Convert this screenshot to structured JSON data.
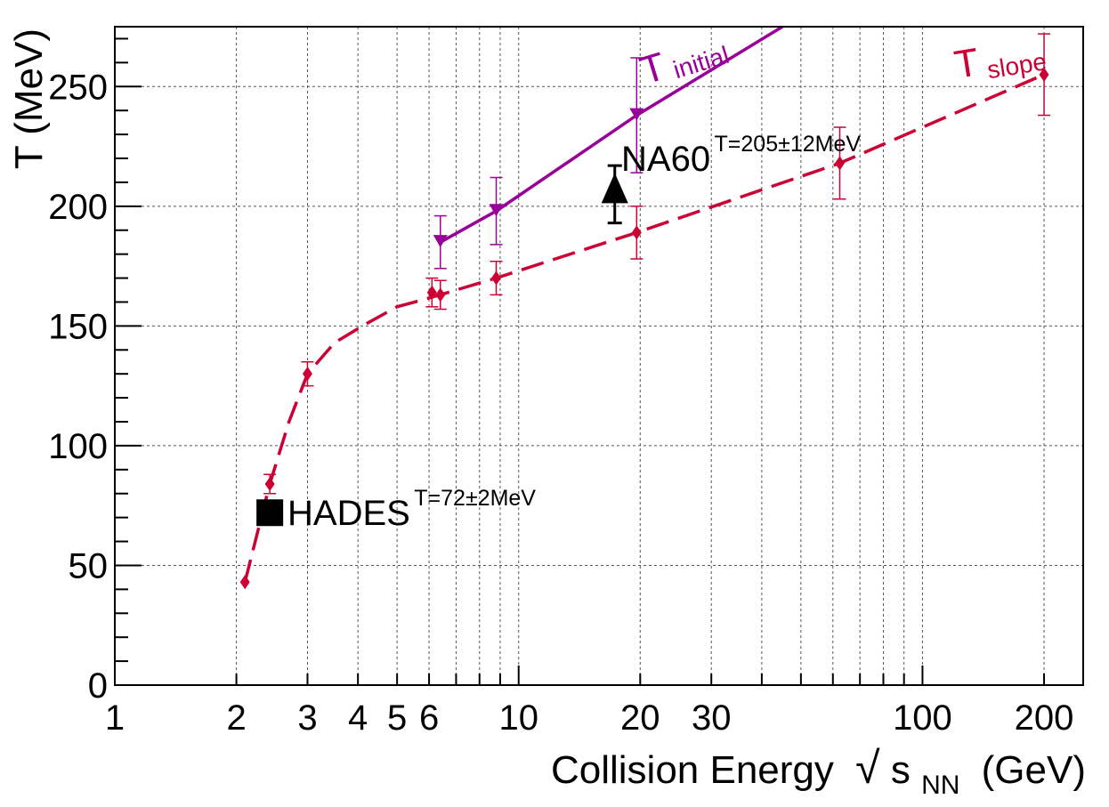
{
  "chart_data": {
    "type": "scatter",
    "title": "",
    "xlabel_main": "Collision Energy",
    "xlabel_root_symbol": "√",
    "xlabel_sqrt_var": "s",
    "xlabel_sqrt_sub": "NN",
    "xlabel_unit": "(GeV)",
    "ylabel": "T (MeV)",
    "xscale": "log",
    "xlim": [
      1,
      250
    ],
    "ylim": [
      0,
      275
    ],
    "grid": true,
    "x_ticks": [
      {
        "value": 1,
        "label": "1"
      },
      {
        "value": 2,
        "label": "2"
      },
      {
        "value": 3,
        "label": "3"
      },
      {
        "value": 4,
        "label": "4"
      },
      {
        "value": 5,
        "label": "5"
      },
      {
        "value": 6,
        "label": "6"
      },
      {
        "value": 10,
        "label": "10"
      },
      {
        "value": 20,
        "label": "20"
      },
      {
        "value": 30,
        "label": "30"
      },
      {
        "value": 100,
        "label": "100"
      },
      {
        "value": 200,
        "label": "200"
      }
    ],
    "y_ticks": [
      {
        "value": 0,
        "label": "0"
      },
      {
        "value": 50,
        "label": "50"
      },
      {
        "value": 100,
        "label": "100"
      },
      {
        "value": 150,
        "label": "150"
      },
      {
        "value": 200,
        "label": "200"
      },
      {
        "value": 250,
        "label": "250"
      }
    ],
    "series": [
      {
        "name": "T_slope",
        "label_main": "T",
        "label_sub": "slope",
        "color": "#cc0033",
        "marker": "diamond",
        "line_style": "dashed",
        "points": [
          {
            "x": 2.1,
            "y": 43,
            "err": 0
          },
          {
            "x": 2.42,
            "y": 84,
            "err": 4
          },
          {
            "x": 3.0,
            "y": 130,
            "err": 5
          },
          {
            "x": 6.1,
            "y": 164,
            "err": 6
          },
          {
            "x": 6.4,
            "y": 163,
            "err": 6
          },
          {
            "x": 8.8,
            "y": 170,
            "err": 7
          },
          {
            "x": 19.6,
            "y": 189,
            "err": 11
          },
          {
            "x": 62.4,
            "y": 218,
            "err": 15
          },
          {
            "x": 200,
            "y": 255,
            "err": 17
          }
        ],
        "curve": [
          {
            "x": 2.1,
            "y": 43
          },
          {
            "x": 2.42,
            "y": 84
          },
          {
            "x": 2.7,
            "y": 110
          },
          {
            "x": 3.0,
            "y": 130
          },
          {
            "x": 3.5,
            "y": 143
          },
          {
            "x": 4.2,
            "y": 151
          },
          {
            "x": 5.0,
            "y": 158
          },
          {
            "x": 6.1,
            "y": 162
          },
          {
            "x": 8.8,
            "y": 170
          },
          {
            "x": 19.6,
            "y": 189
          },
          {
            "x": 62.4,
            "y": 218
          },
          {
            "x": 200,
            "y": 255
          }
        ]
      },
      {
        "name": "T_initial",
        "label_main": "T",
        "label_sub": "initial",
        "color": "#990099",
        "marker": "triangle-down",
        "line_style": "solid",
        "points": [
          {
            "x": 6.4,
            "y": 185,
            "err": 11
          },
          {
            "x": 8.8,
            "y": 198,
            "err": 14
          },
          {
            "x": 19.6,
            "y": 238,
            "err": 24
          }
        ],
        "curve": [
          {
            "x": 6.4,
            "y": 185
          },
          {
            "x": 8.8,
            "y": 198
          },
          {
            "x": 19.6,
            "y": 238
          },
          {
            "x": 45,
            "y": 275
          }
        ]
      },
      {
        "name": "NA60",
        "label": "NA60",
        "superscript": "T=205±12MeV",
        "color": "#000000",
        "marker": "triangle-up",
        "points": [
          {
            "x": 17.3,
            "y": 205,
            "err": 12
          }
        ]
      },
      {
        "name": "HADES",
        "label": "HADES",
        "superscript": "T=72±2MeV",
        "color": "#000000",
        "marker": "square",
        "points": [
          {
            "x": 2.42,
            "y": 72,
            "err": 2
          }
        ]
      }
    ]
  }
}
